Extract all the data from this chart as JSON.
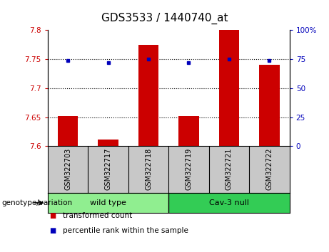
{
  "title": "GDS3533 / 1440740_at",
  "samples": [
    "GSM322703",
    "GSM322717",
    "GSM322718",
    "GSM322719",
    "GSM322721",
    "GSM322722"
  ],
  "red_values": [
    7.652,
    7.612,
    7.775,
    7.652,
    7.8,
    7.74
  ],
  "blue_values": [
    74,
    72,
    75,
    72,
    75,
    74
  ],
  "ylim_left": [
    7.6,
    7.8
  ],
  "ylim_right": [
    0,
    100
  ],
  "yticks_left": [
    7.6,
    7.65,
    7.7,
    7.75,
    7.8
  ],
  "yticks_right": [
    0,
    25,
    50,
    75,
    100
  ],
  "ytick_labels_left": [
    "7.6",
    "7.65",
    "7.7",
    "7.75",
    "7.8"
  ],
  "ytick_labels_right": [
    "0",
    "25",
    "50",
    "75",
    "100%"
  ],
  "hlines": [
    7.65,
    7.7,
    7.75
  ],
  "groups": [
    {
      "label": "wild type",
      "indices": [
        0,
        1,
        2
      ],
      "color": "#90EE90"
    },
    {
      "label": "Cav-3 null",
      "indices": [
        3,
        4,
        5
      ],
      "color": "#33CC55"
    }
  ],
  "bar_color": "#CC0000",
  "dot_color": "#0000BB",
  "bar_width": 0.5,
  "background_samples": "#C8C8C8",
  "genotype_label": "genotype/variation",
  "legend_items": [
    {
      "color": "#CC0000",
      "label": "transformed count"
    },
    {
      "color": "#0000BB",
      "label": "percentile rank within the sample"
    }
  ],
  "title_fontsize": 11,
  "tick_fontsize": 7.5,
  "sample_fontsize": 7,
  "legend_fontsize": 7.5
}
